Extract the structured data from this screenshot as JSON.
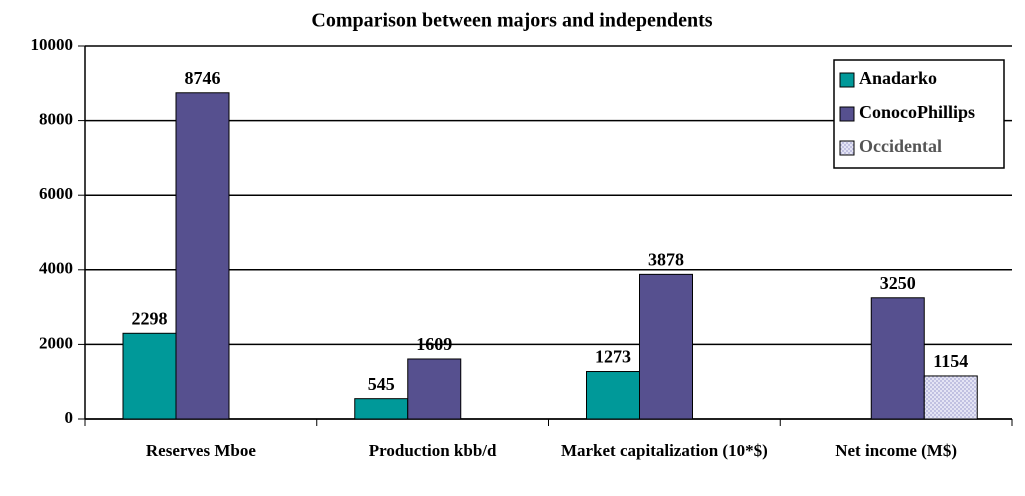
{
  "chart_data": {
    "type": "bar",
    "title": "Comparison between majors and independents",
    "categories": [
      "Reserves Mboe",
      "Production kbb/d",
      "Market capitalization (10*$)",
      "Net income (M$)"
    ],
    "series": [
      {
        "name": "Anadarko",
        "color": "#009999",
        "values": [
          2298,
          545,
          1273,
          null
        ]
      },
      {
        "name": "ConocoPhillips",
        "color": "#56508f",
        "values": [
          8746,
          1609,
          3878,
          3250
        ]
      },
      {
        "name": "Occidental",
        "color": "#e4e4f4",
        "values": [
          null,
          null,
          null,
          1154
        ]
      }
    ],
    "ylim": [
      0,
      10000
    ],
    "yticks": [
      0,
      2000,
      4000,
      6000,
      8000,
      10000
    ],
    "grid": true,
    "legend": "upper right"
  }
}
